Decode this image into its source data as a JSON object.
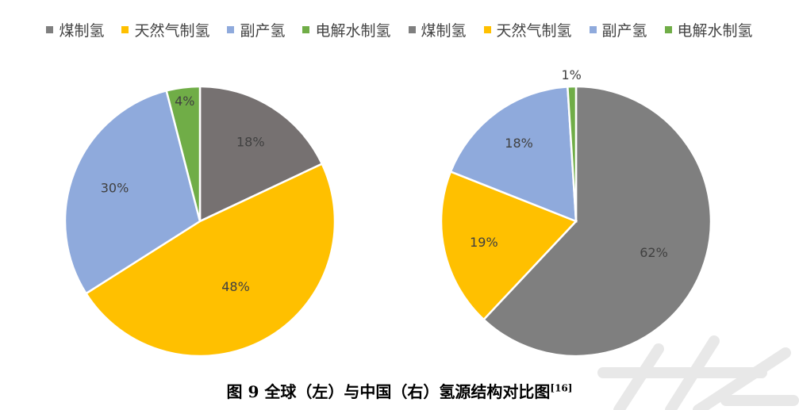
{
  "legend": [
    {
      "label": "煤制氢",
      "color": "#7f7f7f"
    },
    {
      "label": "天然气制氢",
      "color": "#ffc000"
    },
    {
      "label": "副产氢",
      "color": "#8faadc"
    },
    {
      "label": "电解水制氢",
      "color": "#70ad47"
    },
    {
      "label": "煤制氢",
      "color": "#7f7f7f"
    },
    {
      "label": "天然气制氢",
      "color": "#ffc000"
    },
    {
      "label": "副产氢",
      "color": "#8faadc"
    },
    {
      "label": "电解水制氢",
      "color": "#70ad47"
    }
  ],
  "caption": {
    "main": "图 9  全球（左）与中国（右）氢源结构对比图",
    "ref": "[16]"
  },
  "chart_data": [
    {
      "type": "pie",
      "categories": [
        "煤制氢",
        "天然气制氢",
        "副产氢",
        "电解水制氢"
      ],
      "values": [
        18,
        48,
        30,
        4
      ],
      "labels": [
        "18%",
        "48%",
        "30%",
        "4%"
      ],
      "colors": [
        "#767171",
        "#ffc000",
        "#8faadc",
        "#70ad47"
      ]
    },
    {
      "type": "pie",
      "categories": [
        "煤制氢",
        "天然气制氢",
        "副产氢",
        "电解水制氢"
      ],
      "values": [
        62,
        19,
        18,
        1
      ],
      "labels": [
        "62%",
        "19%",
        "18%",
        "1%"
      ],
      "colors": [
        "#7f7f7f",
        "#ffc000",
        "#8faadc",
        "#70ad47"
      ]
    }
  ]
}
